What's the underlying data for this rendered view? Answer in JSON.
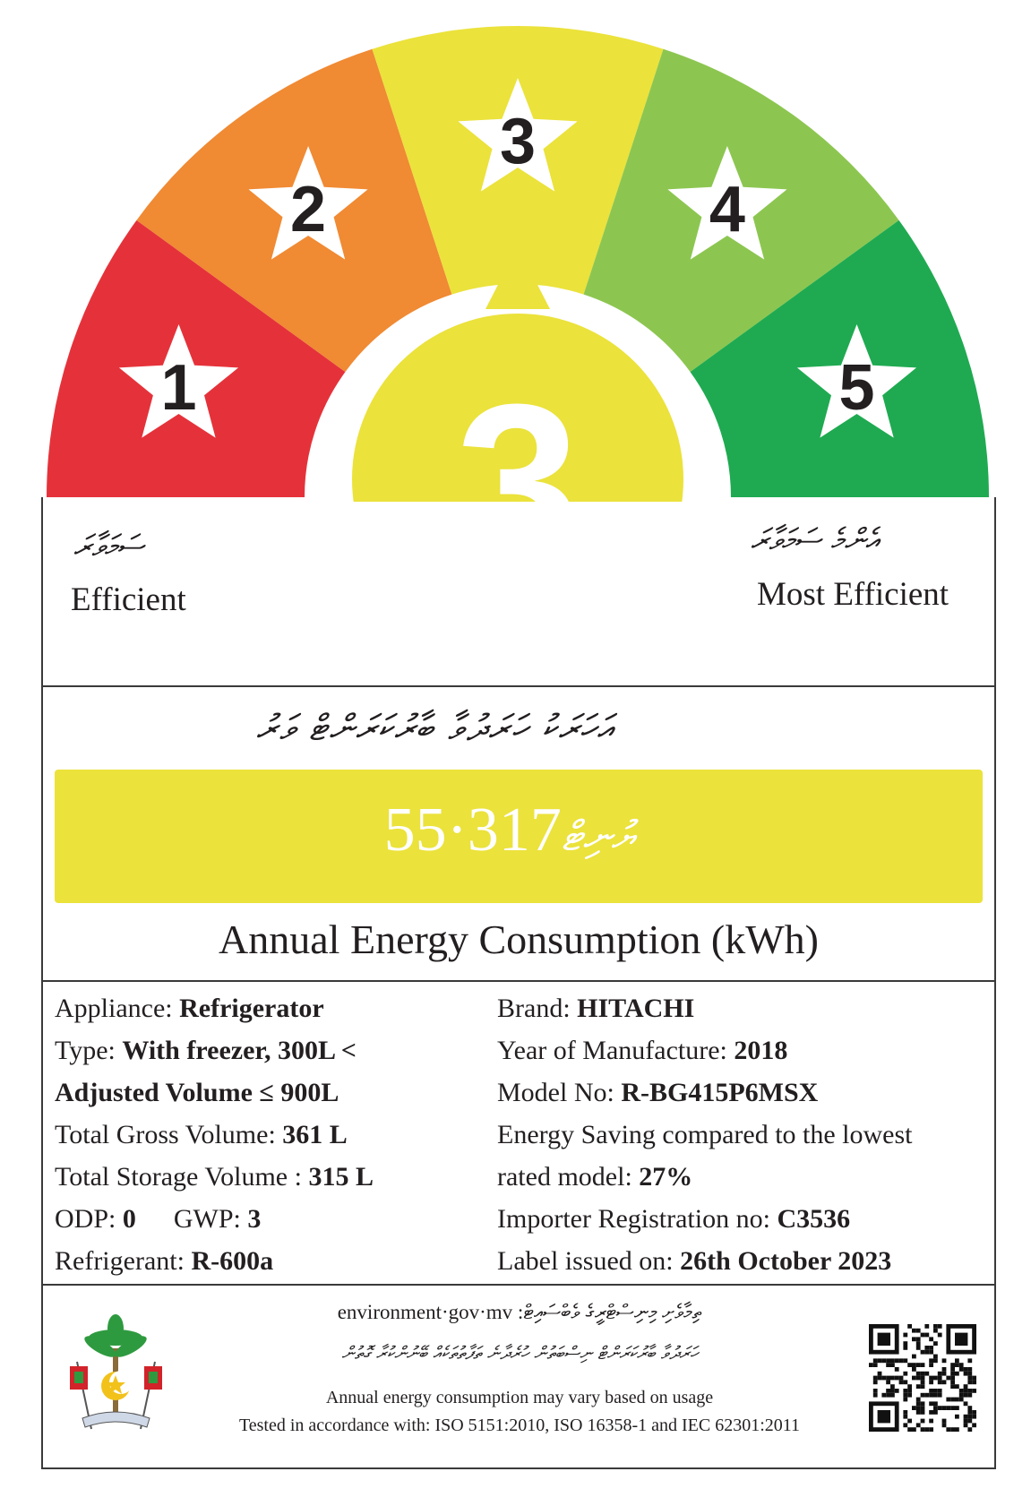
{
  "rating": {
    "stars": [
      "1",
      "2",
      "3",
      "4",
      "5"
    ],
    "selected": "3",
    "segment_colors": [
      "#e5323a",
      "#f08a33",
      "#ebe23b",
      "#8cc650",
      "#1faa51"
    ]
  },
  "scale": {
    "left_dhivehi": "ސަމަވާރަ",
    "left_label": "Efficient",
    "right_dhivehi": "އެންމެ ސަމަވާރަ",
    "right_label": "Most Efficient"
  },
  "energy": {
    "dhivehi_heading": "އަހަރަކު ހަރަދުވާ ބާރުކަރަންޓް ވަރު",
    "unit_dhivehi": "ޔުނިޓް",
    "value": "317·55",
    "caption": "Annual Energy Consumption (kWh)"
  },
  "specs_left": [
    {
      "label": "Appliance: ",
      "value": "Refrigerator"
    },
    {
      "label": "Type: ",
      "value": "With freezer, 300L <"
    },
    {
      "label": "",
      "value": "Adjusted Volume ≤ 900L"
    },
    {
      "label": "Total Gross Volume: ",
      "value": "361 L"
    },
    {
      "label": "Total Storage Volume : ",
      "value": "315 L"
    },
    {
      "label": "ODP: ",
      "value": "0",
      "label2": "GWP: ",
      "value2": "3"
    },
    {
      "label": "Refrigerant: ",
      "value": "R-600a"
    }
  ],
  "specs_right": [
    {
      "label": "Brand: ",
      "value": "HITACHI"
    },
    {
      "label": "Year of Manufacture: ",
      "value": "2018"
    },
    {
      "label": "Model No: ",
      "value": "R-BG415P6MSX"
    },
    {
      "label": "Energy Saving compared to the lowest",
      "value": ""
    },
    {
      "label": "rated model: ",
      "value": "27%"
    },
    {
      "label": "Importer Registration no: ",
      "value": "C3536"
    },
    {
      "label": "Label issued on: ",
      "value": "26th October 2023"
    }
  ],
  "footer": {
    "line1": "environment·gov·mv  :ތިމާވެށި މިނިސްޓްރީގެ ވެބްސައިޓް",
    "line2_dhivehi": "ހަރަދުވާ ބާރުކަރަންޓް ނިސްބަތުން ހުރެދާނެ ތަފާތުތަކެއް ބޭނުންކުރާ ގޮތުން",
    "line3": "Annual energy consumption may vary based on usage",
    "line4": "Tested in accordance with: ISO 5151:2010, ISO 16358-1 and IEC 62301:2011"
  }
}
